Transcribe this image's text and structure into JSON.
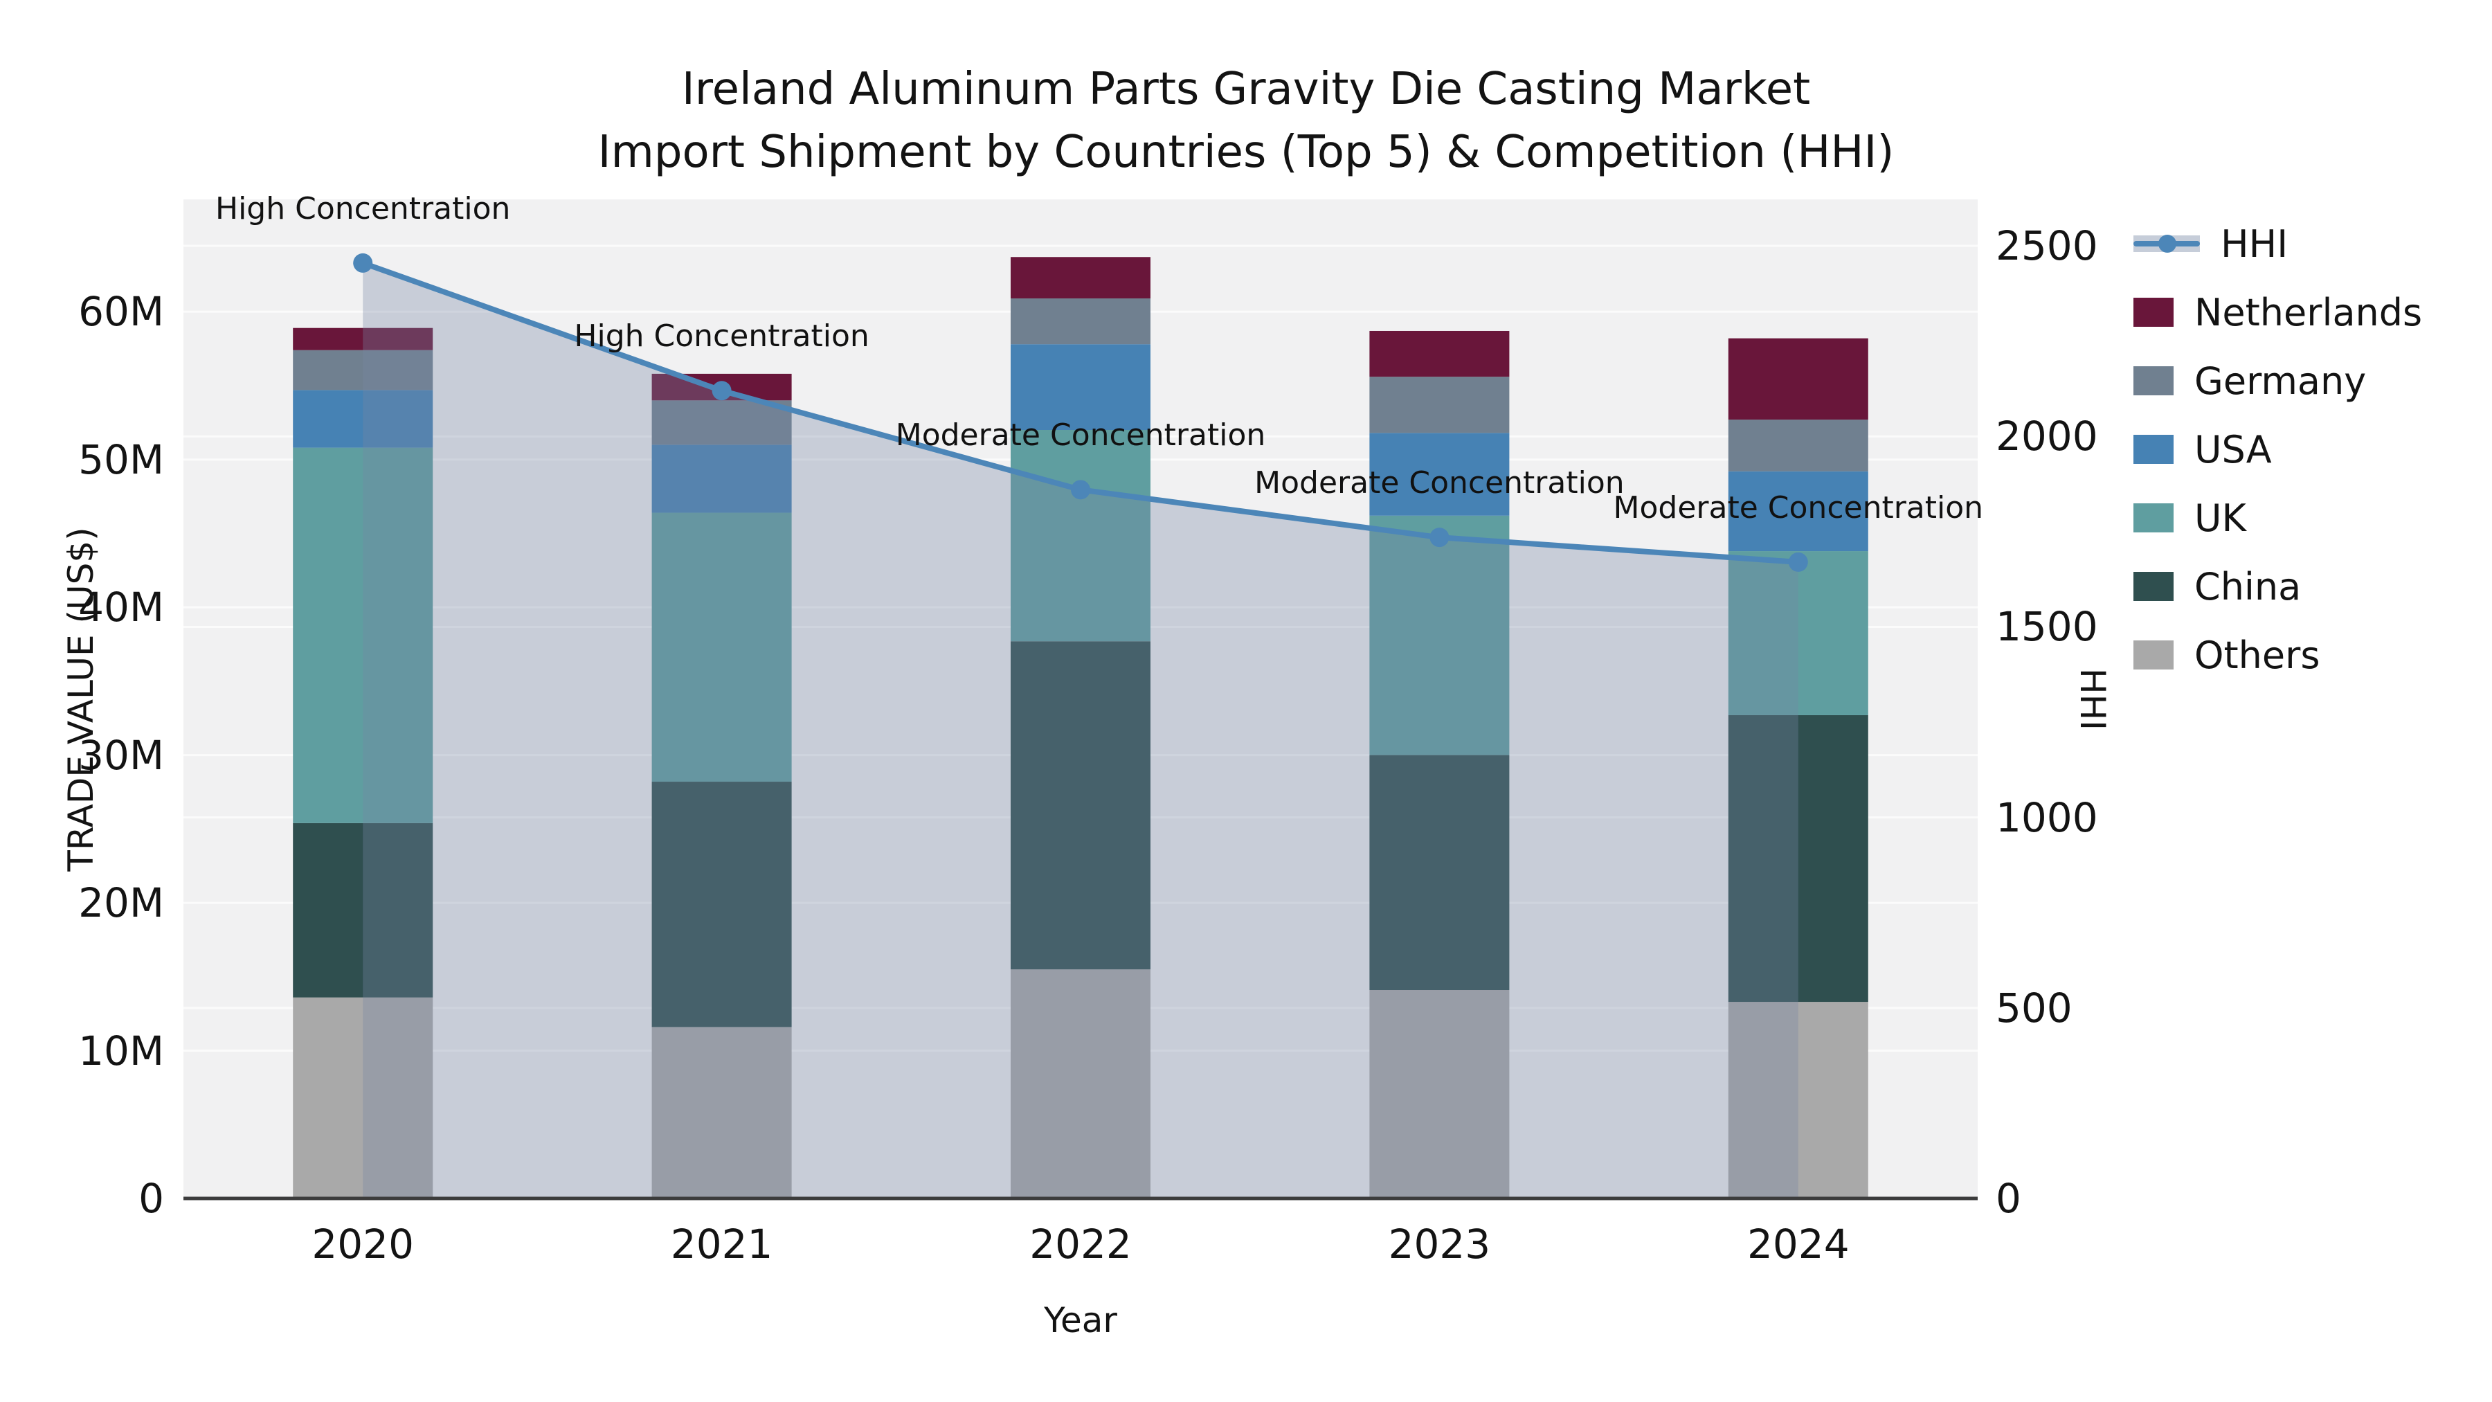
{
  "title": {
    "line1": "Ireland Aluminum Parts Gravity Die Casting Market",
    "line2": "Import Shipment by Countries (Top 5) & Competition (HHI)"
  },
  "axes": {
    "y_left": {
      "title": "TRADE VALUE (US$)",
      "tick_labels": [
        "0",
        "10M",
        "20M",
        "30M",
        "40M",
        "50M",
        "60M"
      ],
      "tick_values": [
        0,
        10,
        20,
        30,
        40,
        50,
        60
      ],
      "max": 67.6
    },
    "y_right": {
      "title": "HHI",
      "tick_labels": [
        "0",
        "500",
        "1000",
        "1500",
        "2000",
        "2500"
      ],
      "tick_values": [
        0,
        500,
        1000,
        1500,
        2000,
        2500
      ],
      "max": 2622
    },
    "x": {
      "title": "Year",
      "categories": [
        "2020",
        "2021",
        "2022",
        "2023",
        "2024"
      ]
    }
  },
  "legend": [
    {
      "label": "HHI",
      "type": "line",
      "color": "#4c86b8"
    },
    {
      "label": "Netherlands",
      "type": "box",
      "color": "#69163a"
    },
    {
      "label": "Germany",
      "type": "box",
      "color": "#708090"
    },
    {
      "label": "USA",
      "type": "box",
      "color": "#4682b4"
    },
    {
      "label": "UK",
      "type": "box",
      "color": "#5f9ea0"
    },
    {
      "label": "China",
      "type": "box",
      "color": "#2f4f4f"
    },
    {
      "label": "Others",
      "type": "box",
      "color": "#a9a9a9"
    }
  ],
  "colors": {
    "plot_bg": "#f1f1f2",
    "gridline": "#fbfbfb",
    "baseline": "#3c3c3c",
    "hhi_line": "#4c86b8",
    "hhi_area_fill": "rgba(119,134,163,0.33)"
  },
  "chart_data": {
    "type": "bar+line",
    "title": "Ireland Aluminum Parts Gravity Die Casting Market Import Shipment by Countries (Top 5) & Competition (HHI)",
    "xlabel": "Year",
    "ylabel_left": "TRADE VALUE (US$)",
    "ylabel_right": "HHI",
    "categories": [
      "2020",
      "2021",
      "2022",
      "2023",
      "2024"
    ],
    "unit": "Million US$",
    "stack_order_bottom_to_top": [
      "Others",
      "China",
      "UK",
      "USA",
      "Germany",
      "Netherlands"
    ],
    "series": [
      {
        "name": "Others",
        "color": "#a9a9a9",
        "values": [
          13.6,
          11.6,
          15.5,
          14.1,
          13.3
        ]
      },
      {
        "name": "China",
        "color": "#2f4f4f",
        "values": [
          11.8,
          16.6,
          22.2,
          15.9,
          19.4
        ]
      },
      {
        "name": "UK",
        "color": "#5f9ea0",
        "values": [
          25.4,
          18.2,
          14.3,
          16.2,
          11.1
        ]
      },
      {
        "name": "USA",
        "color": "#4682b4",
        "values": [
          3.9,
          4.6,
          5.8,
          5.6,
          5.4
        ]
      },
      {
        "name": "Germany",
        "color": "#708090",
        "values": [
          2.7,
          3.0,
          3.1,
          3.8,
          3.5
        ]
      },
      {
        "name": "Netherlands",
        "color": "#69163a",
        "values": [
          1.5,
          1.8,
          2.8,
          3.1,
          5.5
        ]
      }
    ],
    "bar_totals": [
      58.9,
      55.8,
      63.7,
      58.7,
      58.2
    ],
    "line_series": {
      "name": "HHI",
      "axis": "right",
      "color": "#4c86b8",
      "values": [
        2455,
        2120,
        1860,
        1735,
        1670
      ],
      "area_fill": true
    },
    "annotations": [
      {
        "category": "2020",
        "text": "High Concentration"
      },
      {
        "category": "2021",
        "text": "High Concentration"
      },
      {
        "category": "2022",
        "text": "Moderate Concentration"
      },
      {
        "category": "2023",
        "text": "Moderate Concentration"
      },
      {
        "category": "2024",
        "text": "Moderate Concentration"
      }
    ],
    "ylim_left": [
      0,
      67.6
    ],
    "ylim_right": [
      0,
      2622
    ],
    "grid": true,
    "legend_position": "right"
  }
}
